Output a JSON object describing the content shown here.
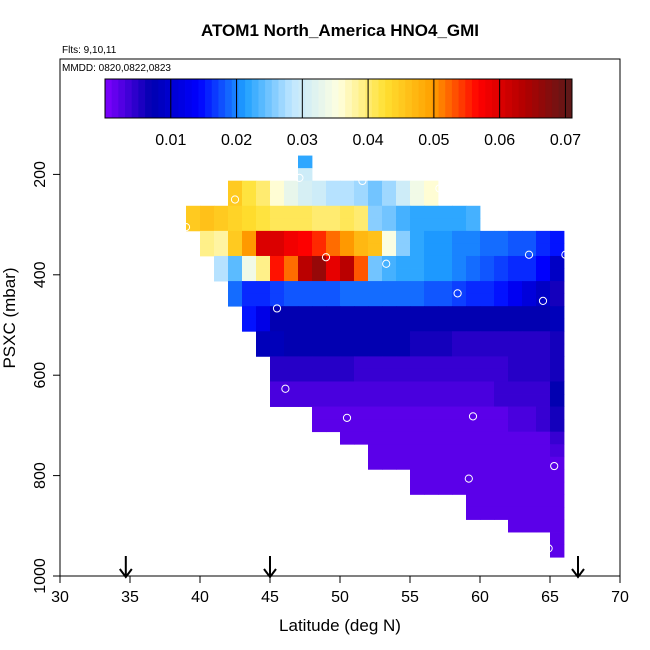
{
  "chart_data": {
    "type": "heatmap",
    "title": "ATOM1 North_America HNO4_GMI",
    "flights_label": "Flts: 9,10,11",
    "dates_label": "MMDD: 0820,0822,0823",
    "xlabel": "Latitude (deg N)",
    "ylabel": "PSXC (mbar)",
    "xlim": [
      30,
      70
    ],
    "ylim": [
      1000,
      0
    ],
    "x_ticks": [
      "30",
      "35",
      "40",
      "45",
      "50",
      "55",
      "60",
      "65",
      "70"
    ],
    "y_ticks": [
      "200",
      "400",
      "600",
      "800",
      "1000"
    ],
    "colorbar": {
      "range": [
        0,
        0.071
      ],
      "ticks": [
        "0.01",
        "0.02",
        "0.03",
        "0.04",
        "0.05",
        "0.06",
        "0.07"
      ],
      "colors": [
        "#7f00ff",
        "#0000b0",
        "#0000ff",
        "#1ea0ff",
        "#bfe6ff",
        "#ffffe0",
        "#ffe030",
        "#ffa000",
        "#ff0000",
        "#b00000",
        "#5a1a1a"
      ]
    },
    "flight_arrows_lat": [
      34.7,
      45,
      67
    ],
    "bin_size": {
      "lat": 1,
      "pressure": 25
    },
    "cells_note": "each row: [pressure_bin_center_mbar, lat_start, lat_end, values per 1-degree column]",
    "rows": [
      [
        175,
        47,
        48,
        [
          0.022
        ]
      ],
      [
        200,
        47,
        48,
        [
          0.03
        ]
      ],
      [
        225,
        42,
        57,
        [
          0.045,
          0.042,
          0.04,
          0.036,
          0.033,
          0.031,
          0.03,
          0.028,
          0.028,
          0.027,
          0.025,
          0.027,
          0.03,
          0.034,
          0.036
        ]
      ],
      [
        250,
        42,
        57,
        [
          0.045,
          0.042,
          0.04,
          0.036,
          0.033,
          0.031,
          0.03,
          0.028,
          0.028,
          0.027,
          0.025,
          0.027,
          0.03,
          0.034,
          0.036
        ]
      ],
      [
        275,
        39,
        60,
        [
          0.045,
          0.046,
          0.045,
          0.044,
          0.043,
          0.042,
          0.041,
          0.041,
          0.041,
          0.04,
          0.04,
          0.041,
          0.04,
          0.026,
          0.025,
          0.023,
          0.022,
          0.022,
          0.022,
          0.022,
          0.023
        ]
      ],
      [
        300,
        39,
        60,
        [
          0.045,
          0.046,
          0.045,
          0.044,
          0.043,
          0.042,
          0.041,
          0.041,
          0.041,
          0.04,
          0.04,
          0.041,
          0.04,
          0.026,
          0.025,
          0.023,
          0.022,
          0.022,
          0.022,
          0.022,
          0.023
        ]
      ],
      [
        325,
        40,
        66,
        [
          0.039,
          0.038,
          0.045,
          0.05,
          0.06,
          0.06,
          0.058,
          0.057,
          0.055,
          0.052,
          0.05,
          0.047,
          0.046,
          0.035,
          0.026,
          0.022,
          0.021,
          0.021,
          0.02,
          0.02,
          0.019,
          0.019,
          0.018,
          0.018,
          0.016,
          0.015
        ]
      ],
      [
        350,
        40,
        66,
        [
          0.039,
          0.038,
          0.045,
          0.05,
          0.06,
          0.06,
          0.058,
          0.057,
          0.055,
          0.052,
          0.05,
          0.047,
          0.046,
          0.035,
          0.026,
          0.022,
          0.021,
          0.021,
          0.02,
          0.02,
          0.019,
          0.019,
          0.018,
          0.018,
          0.016,
          0.015
        ]
      ],
      [
        375,
        41,
        66,
        [
          0.028,
          0.024,
          0.034,
          0.039,
          0.056,
          0.052,
          0.063,
          0.066,
          0.059,
          0.063,
          0.053,
          0.025,
          0.023,
          0.022,
          0.022,
          0.021,
          0.021,
          0.02,
          0.019,
          0.018,
          0.017,
          0.016,
          0.016,
          0.014,
          0.009
        ]
      ],
      [
        400,
        41,
        66,
        [
          0.028,
          0.024,
          0.034,
          0.039,
          0.056,
          0.052,
          0.063,
          0.066,
          0.059,
          0.063,
          0.053,
          0.025,
          0.023,
          0.022,
          0.022,
          0.021,
          0.021,
          0.02,
          0.019,
          0.018,
          0.017,
          0.016,
          0.016,
          0.014,
          0.009
        ]
      ],
      [
        425,
        42,
        66,
        [
          0.019,
          0.016,
          0.016,
          0.017,
          0.018,
          0.018,
          0.018,
          0.018,
          0.019,
          0.019,
          0.019,
          0.019,
          0.019,
          0.019,
          0.018,
          0.018,
          0.017,
          0.016,
          0.016,
          0.015,
          0.013,
          0.011,
          0.009,
          0.006
        ]
      ],
      [
        450,
        42,
        66,
        [
          0.019,
          0.016,
          0.016,
          0.017,
          0.018,
          0.018,
          0.018,
          0.018,
          0.019,
          0.019,
          0.019,
          0.019,
          0.019,
          0.019,
          0.018,
          0.018,
          0.017,
          0.016,
          0.016,
          0.015,
          0.013,
          0.011,
          0.009,
          0.006
        ]
      ],
      [
        475,
        43,
        66,
        [
          0.015,
          0.012,
          0.007,
          0.007,
          0.007,
          0.007,
          0.007,
          0.007,
          0.007,
          0.007,
          0.007,
          0.007,
          0.007,
          0.007,
          0.007,
          0.007,
          0.007,
          0.007,
          0.007,
          0.007,
          0.007,
          0.007,
          0.008
        ]
      ],
      [
        500,
        43,
        66,
        [
          0.015,
          0.012,
          0.007,
          0.007,
          0.007,
          0.007,
          0.007,
          0.007,
          0.007,
          0.007,
          0.007,
          0.007,
          0.007,
          0.007,
          0.007,
          0.007,
          0.007,
          0.007,
          0.007,
          0.007,
          0.007,
          0.007,
          0.008
        ]
      ],
      [
        525,
        44,
        66,
        [
          0.008,
          0.008,
          0.007,
          0.007,
          0.007,
          0.007,
          0.007,
          0.007,
          0.007,
          0.007,
          0.007,
          0.006,
          0.006,
          0.006,
          0.005,
          0.005,
          0.005,
          0.005,
          0.005,
          0.005,
          0.005,
          0.006
        ]
      ],
      [
        550,
        44,
        66,
        [
          0.008,
          0.008,
          0.007,
          0.007,
          0.007,
          0.007,
          0.007,
          0.007,
          0.007,
          0.007,
          0.007,
          0.006,
          0.006,
          0.006,
          0.005,
          0.005,
          0.005,
          0.005,
          0.005,
          0.005,
          0.005,
          0.006
        ]
      ],
      [
        575,
        45,
        66,
        [
          0.005,
          0.005,
          0.005,
          0.005,
          0.005,
          0.005,
          0.004,
          0.004,
          0.004,
          0.004,
          0.004,
          0.004,
          0.004,
          0.004,
          0.004,
          0.004,
          0.004,
          0.005,
          0.005,
          0.005,
          0.006
        ]
      ],
      [
        600,
        45,
        66,
        [
          0.005,
          0.005,
          0.005,
          0.005,
          0.005,
          0.005,
          0.004,
          0.004,
          0.004,
          0.004,
          0.004,
          0.004,
          0.004,
          0.004,
          0.004,
          0.004,
          0.004,
          0.005,
          0.005,
          0.005,
          0.006
        ]
      ],
      [
        625,
        45,
        66,
        [
          0.003,
          0.003,
          0.003,
          0.003,
          0.003,
          0.003,
          0.003,
          0.003,
          0.003,
          0.003,
          0.003,
          0.003,
          0.003,
          0.003,
          0.003,
          0.003,
          0.004,
          0.004,
          0.004,
          0.004,
          0.007
        ]
      ],
      [
        650,
        45,
        66,
        [
          0.003,
          0.003,
          0.003,
          0.003,
          0.003,
          0.003,
          0.003,
          0.003,
          0.003,
          0.003,
          0.003,
          0.003,
          0.003,
          0.003,
          0.003,
          0.003,
          0.004,
          0.004,
          0.004,
          0.004,
          0.007
        ]
      ],
      [
        675,
        48,
        66,
        [
          0.002,
          0.002,
          0.002,
          0.002,
          0.002,
          0.002,
          0.002,
          0.002,
          0.002,
          0.002,
          0.002,
          0.002,
          0.002,
          0.002,
          0.003,
          0.003,
          0.004,
          0.006
        ]
      ],
      [
        700,
        48,
        66,
        [
          0.002,
          0.002,
          0.002,
          0.002,
          0.002,
          0.002,
          0.002,
          0.002,
          0.002,
          0.002,
          0.002,
          0.002,
          0.002,
          0.002,
          0.003,
          0.003,
          0.004,
          0.006
        ]
      ],
      [
        725,
        50,
        66,
        [
          0.002,
          0.002,
          0.002,
          0.002,
          0.002,
          0.002,
          0.002,
          0.002,
          0.002,
          0.002,
          0.002,
          0.002,
          0.002,
          0.002,
          0.002,
          0.004
        ]
      ],
      [
        750,
        52,
        66,
        [
          0.002,
          0.002,
          0.002,
          0.002,
          0.002,
          0.002,
          0.002,
          0.002,
          0.002,
          0.002,
          0.002,
          0.002,
          0.002,
          0.003
        ]
      ],
      [
        775,
        52,
        66,
        [
          0.002,
          0.002,
          0.002,
          0.002,
          0.002,
          0.002,
          0.002,
          0.002,
          0.002,
          0.002,
          0.002,
          0.002,
          0.002,
          0.002
        ]
      ],
      [
        800,
        55,
        66,
        [
          0.002,
          0.002,
          0.002,
          0.002,
          0.002,
          0.002,
          0.002,
          0.002,
          0.002,
          0.002,
          0.002
        ]
      ],
      [
        825,
        55,
        66,
        [
          0.002,
          0.002,
          0.002,
          0.002,
          0.002,
          0.002,
          0.002,
          0.002,
          0.002,
          0.002,
          0.002
        ]
      ],
      [
        850,
        59,
        66,
        [
          0.002,
          0.002,
          0.002,
          0.002,
          0.002,
          0.002,
          0.002
        ]
      ],
      [
        875,
        59,
        66,
        [
          0.002,
          0.002,
          0.002,
          0.002,
          0.002,
          0.002,
          0.002
        ]
      ],
      [
        900,
        62,
        66,
        [
          0.002,
          0.002,
          0.002,
          0.002
        ]
      ],
      [
        925,
        65,
        66,
        [
          0.002
        ]
      ],
      [
        950,
        65,
        66,
        [
          0.002
        ]
      ]
    ],
    "points": [
      [
        47.1,
        207
      ],
      [
        51.6,
        213
      ],
      [
        57.1,
        228
      ],
      [
        42.5,
        250
      ],
      [
        39.0,
        305
      ],
      [
        49.0,
        365
      ],
      [
        53.3,
        378
      ],
      [
        58.4,
        437
      ],
      [
        63.5,
        360
      ],
      [
        66.1,
        360
      ],
      [
        64.5,
        452
      ],
      [
        45.5,
        467
      ],
      [
        46.1,
        627
      ],
      [
        50.5,
        685
      ],
      [
        59.5,
        682
      ],
      [
        59.2,
        806
      ],
      [
        65.3,
        781
      ],
      [
        64.9,
        945
      ]
    ]
  }
}
